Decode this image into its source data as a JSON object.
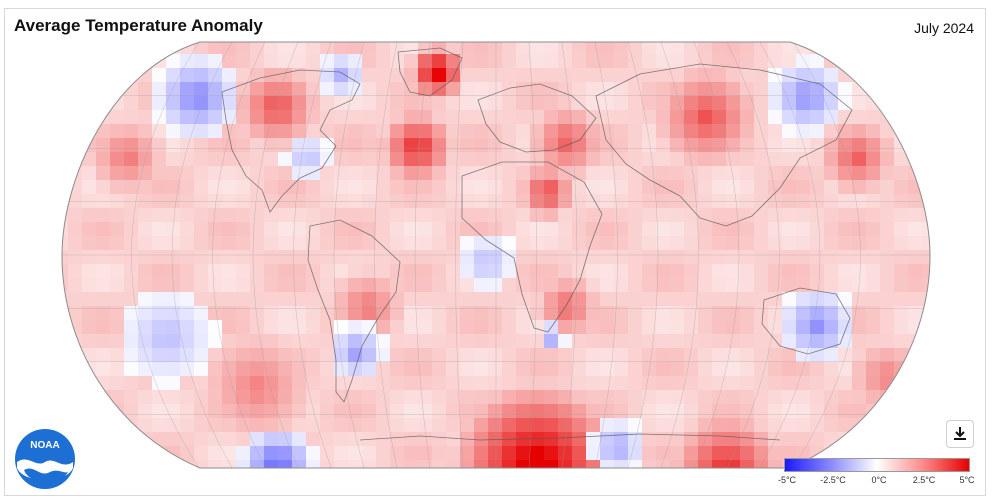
{
  "header": {
    "title": "Average Temperature Anomaly",
    "period": "July 2024"
  },
  "logo": {
    "text": "NOAA"
  },
  "download": {
    "icon": "download-icon"
  },
  "legend": {
    "colors": [
      "#1a1aff",
      "#8a8aff",
      "#ffffff",
      "#ff8a8a",
      "#e60000"
    ],
    "ticks": [
      "-5°C",
      "-2.5°C",
      "0°C",
      "2.5°C",
      "5°C"
    ]
  },
  "map": {
    "projection": "Robinson",
    "grid": true,
    "warm_color": "#e60000",
    "cool_color": "#1a1aff"
  }
}
